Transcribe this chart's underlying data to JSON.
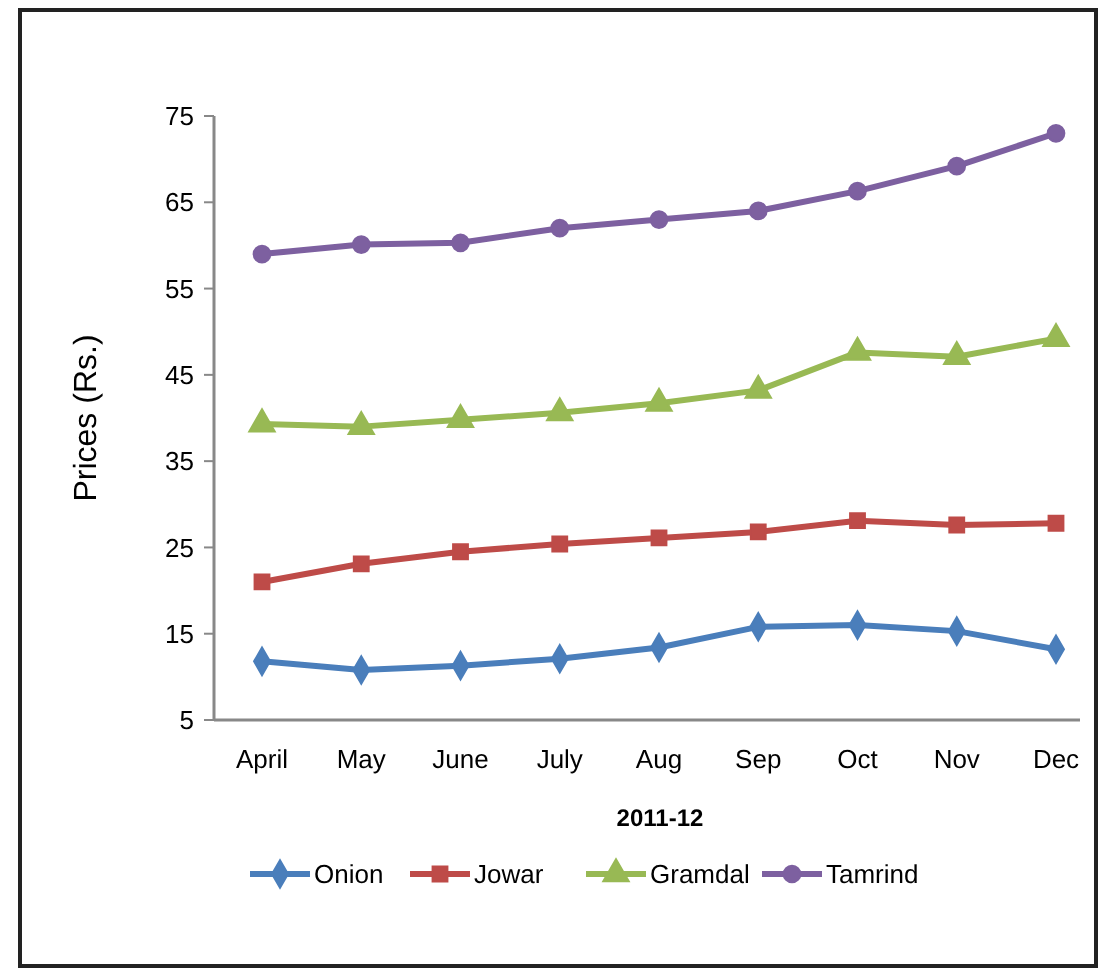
{
  "chart_data": {
    "type": "line",
    "xlabel": "2011-12",
    "ylabel": "Prices (Rs.)",
    "categories": [
      "April",
      "May",
      "June",
      "July",
      "Aug",
      "Sep",
      "Oct",
      "Nov",
      "Dec"
    ],
    "series": [
      {
        "name": "Onion",
        "color": "#4a7ebb",
        "marker": "diamond",
        "values": [
          11.8,
          10.8,
          11.3,
          12.1,
          13.4,
          15.8,
          16,
          15.3,
          13.2
        ]
      },
      {
        "name": "Jowar",
        "color": "#be4b48",
        "marker": "square",
        "values": [
          21,
          23.1,
          24.5,
          25.4,
          26.1,
          26.8,
          28.1,
          27.6,
          27.8
        ]
      },
      {
        "name": "Gramdal",
        "color": "#98b954",
        "marker": "triangle",
        "values": [
          39.3,
          39,
          39.8,
          40.6,
          41.7,
          43.2,
          47.6,
          47.1,
          49.2
        ]
      },
      {
        "name": "Tamrind",
        "color": "#7d60a0",
        "marker": "circle",
        "values": [
          59,
          60.1,
          60.3,
          62,
          63,
          64,
          66.3,
          69.2,
          73
        ]
      }
    ],
    "ylim": [
      5,
      75
    ],
    "yticks": [
      5,
      15,
      25,
      35,
      45,
      55,
      65,
      75
    ],
    "grid": false,
    "legend": "bottom",
    "line_style": "solid"
  }
}
